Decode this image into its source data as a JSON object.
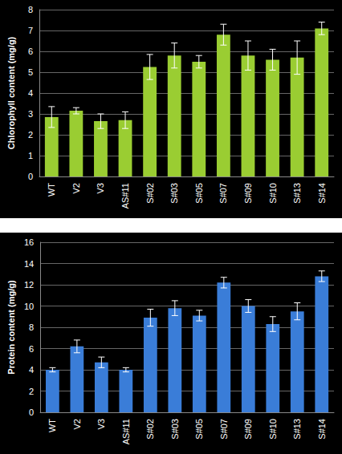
{
  "chart_data": [
    {
      "type": "bar",
      "y_label": "Chlorophyll content (mg/g)",
      "categories": [
        "WT",
        "V2",
        "V3",
        "AS#11",
        "S#02",
        "S#03",
        "S#05",
        "S#07",
        "S#09",
        "S#10",
        "S#13",
        "S#14"
      ],
      "values": [
        2.85,
        3.15,
        2.65,
        2.7,
        5.25,
        5.8,
        5.5,
        6.8,
        5.8,
        5.6,
        5.7,
        7.1
      ],
      "errors": [
        0.5,
        0.15,
        0.35,
        0.4,
        0.6,
        0.6,
        0.3,
        0.5,
        0.7,
        0.5,
        0.8,
        0.3
      ],
      "color": "#9acd32",
      "ylim": [
        0,
        8
      ],
      "yticks": [
        0,
        1,
        2,
        3,
        4,
        5,
        6,
        7,
        8
      ],
      "grid": true
    },
    {
      "type": "bar",
      "y_label": "Protein content (mg/g)",
      "categories": [
        "WT",
        "V2",
        "V3",
        "AS#11",
        "S#02",
        "S#03",
        "S#05",
        "S#07",
        "S#09",
        "S#10",
        "S#13",
        "S#14"
      ],
      "values": [
        4.0,
        6.2,
        4.7,
        4.0,
        8.9,
        9.8,
        9.1,
        12.2,
        10.0,
        8.3,
        9.5,
        12.8
      ],
      "errors": [
        0.2,
        0.6,
        0.5,
        0.2,
        0.8,
        0.7,
        0.5,
        0.5,
        0.6,
        0.7,
        0.8,
        0.5
      ],
      "color": "#3a7dd8",
      "ylim": [
        0,
        16
      ],
      "yticks": [
        0,
        2,
        4,
        6,
        8,
        10,
        12,
        14,
        16
      ],
      "grid": true
    }
  ]
}
